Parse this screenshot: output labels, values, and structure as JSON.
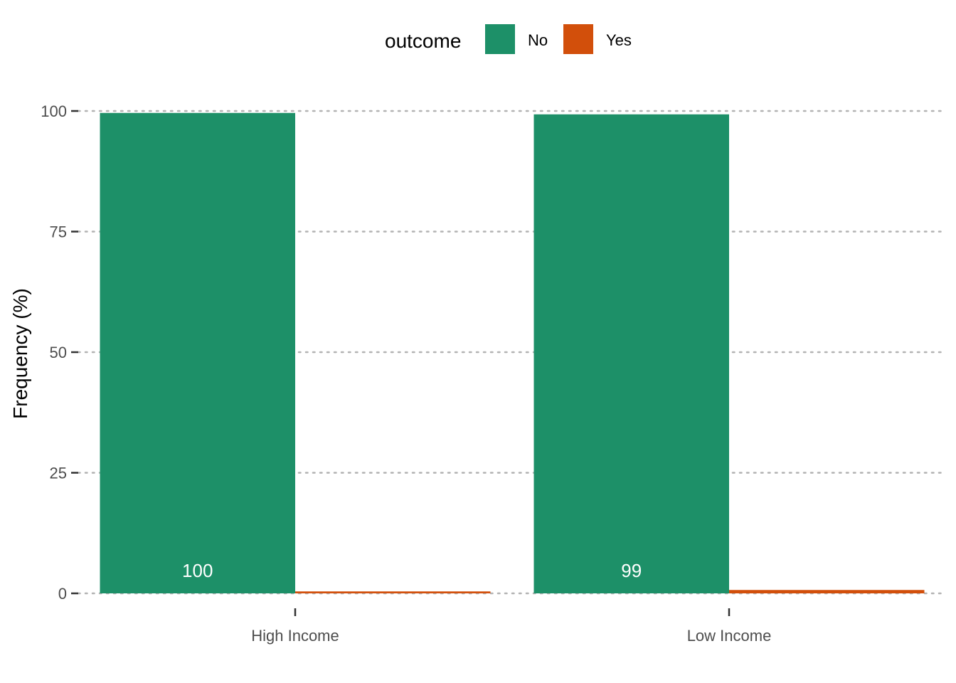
{
  "chart_data": {
    "type": "bar",
    "categories": [
      "High Income",
      "Low Income"
    ],
    "series": [
      {
        "name": "No",
        "values": [
          99.6,
          99.3
        ],
        "color": "#1d9068"
      },
      {
        "name": "Yes",
        "values": [
          0.4,
          0.7
        ],
        "color": "#d24f0b"
      }
    ],
    "data_labels": [
      {
        "category": "High Income",
        "series": "No",
        "text": "100"
      },
      {
        "category": "Low Income",
        "series": "No",
        "text": "99"
      }
    ],
    "ylabel": "Frequency (%)",
    "xlabel": "",
    "ylim": [
      0,
      100
    ],
    "yticks": [
      0,
      25,
      50,
      75,
      100
    ],
    "grid": "horizontal dotted",
    "legend": {
      "title": "outcome",
      "position": "top"
    }
  }
}
